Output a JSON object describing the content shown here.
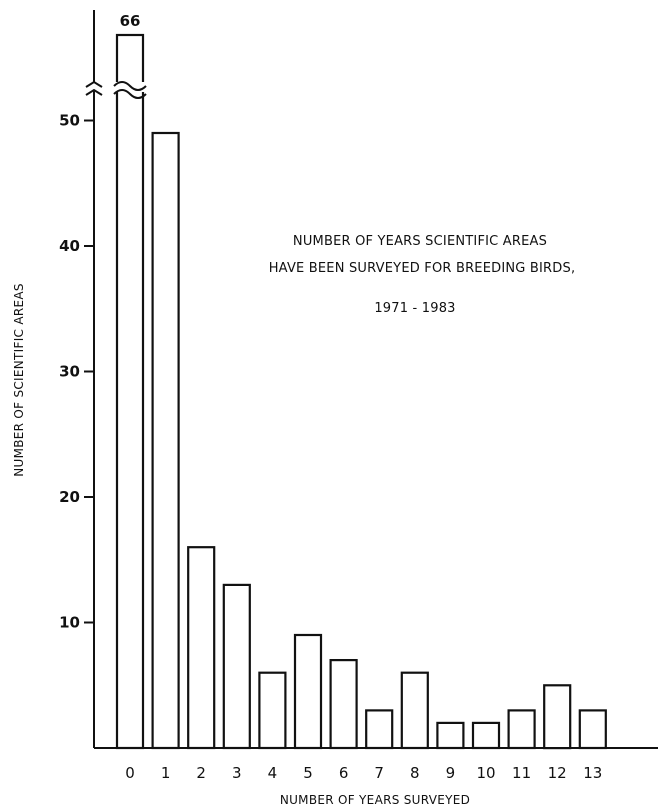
{
  "chart_data": {
    "type": "bar",
    "title_lines": [
      "NUMBER OF YEARS SCIENTIFIC AREAS",
      "HAVE BEEN SURVEYED FOR BREEDING BIRDS,",
      "1971 - 1983"
    ],
    "xlabel": "NUMBER OF YEARS SURVEYED",
    "ylabel": "NUMBER OF SCIENTIFIC AREAS",
    "categories": [
      "0",
      "1",
      "2",
      "3",
      "4",
      "5",
      "6",
      "7",
      "8",
      "9",
      "10",
      "11",
      "12",
      "13"
    ],
    "values": [
      66,
      49,
      16,
      13,
      6,
      9,
      7,
      3,
      6,
      2,
      2,
      3,
      5,
      3
    ],
    "yticks": [
      10,
      20,
      30,
      40,
      50
    ],
    "ylim": [
      0,
      52
    ],
    "axis_break": true,
    "data_labels": [
      {
        "category": "0",
        "text": "66"
      }
    ],
    "grid": false
  }
}
